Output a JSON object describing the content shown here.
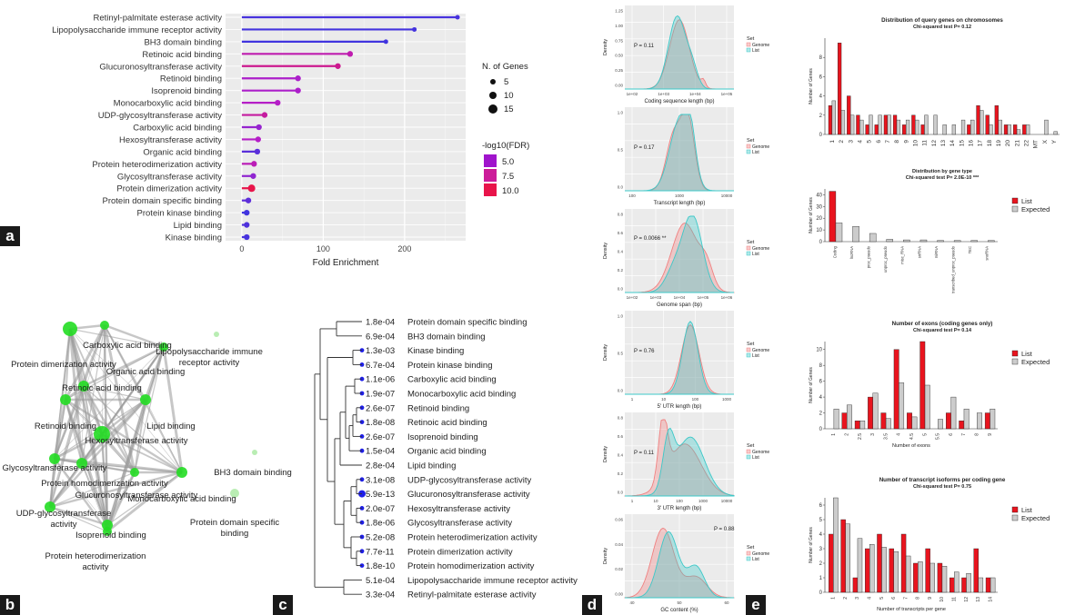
{
  "panel_labels": {
    "a": "a",
    "b": "b",
    "c": "c",
    "d": "d",
    "e": "e"
  },
  "chart_data": [
    {
      "id": "a",
      "type": "lollipop",
      "xlabel": "Fold Enrichment",
      "xticks": [
        0,
        100,
        200
      ],
      "xlim": [
        -20,
        275
      ],
      "categories": [
        "Retinyl-palmitate esterase activity",
        "Lipopolysaccharide immune receptor activity",
        "BH3 domain binding",
        "Retinoic acid binding",
        "Glucuronosyltransferase activity",
        "Retinoid binding",
        "Isoprenoid binding",
        "Monocarboxylic acid binding",
        "UDP-glycosyltransferase activity",
        "Carboxylic acid binding",
        "Hexosyltransferase activity",
        "Organic acid binding",
        "Protein heterodimerization activity",
        "Glycosyltransferase activity",
        "Protein dimerization activity",
        "Protein domain specific binding",
        "Protein kinase binding",
        "Lipid binding",
        "Kinase binding"
      ],
      "values": [
        265,
        212,
        177,
        133,
        118,
        69,
        69,
        44,
        28,
        21,
        20,
        19,
        15,
        14,
        12,
        8,
        6,
        6,
        6
      ],
      "n_genes": [
        5,
        5,
        5,
        8,
        8,
        8,
        8,
        8,
        8,
        8,
        8,
        8,
        8,
        8,
        12,
        8,
        8,
        8,
        8
      ],
      "log10fdr": [
        3.4,
        3.3,
        3.2,
        7.5,
        8.3,
        6.6,
        6.6,
        6.9,
        7.9,
        5.9,
        6.9,
        4.0,
        7.3,
        5.7,
        10.0,
        4.1,
        3.2,
        3.6,
        3.4
      ],
      "legend_size_title": "N. of Genes",
      "legend_size_labels": [
        "5",
        "10",
        "15"
      ],
      "legend_color_title": "-log10(FDR)",
      "legend_color_labels": [
        "5.0",
        "7.5",
        "10.0"
      ],
      "colors": {
        "low": "#3b35e0",
        "mid": "#b41ec9",
        "high": "#e8144a"
      }
    },
    {
      "id": "b",
      "type": "network",
      "nodes": [
        "Carboxylic acid binding",
        "Protein dimerization activity",
        "Organic acid binding",
        "Lipopolysaccharide immune receptor activity",
        "Retinoic acid binding",
        "Retinoid binding",
        "Lipid binding",
        "Hexosyltransferase activity",
        "Glycosyltransferase activity",
        "Protein homodimerization activity",
        "Glucuronosyltransferase activity",
        "Monocarboxylic acid binding",
        "BH3 domain binding",
        "UDP-glycosyltransferase activity",
        "Isoprenoid binding",
        "Protein domain specific binding",
        "Protein heterodimerization activity"
      ]
    },
    {
      "id": "c",
      "type": "dendrogram",
      "leaves": [
        {
          "fdr": "1.8e-04",
          "label": "Protein domain specific binding"
        },
        {
          "fdr": "6.9e-04",
          "label": "BH3 domain binding"
        },
        {
          "fdr": "1.3e-03",
          "label": "Kinase binding"
        },
        {
          "fdr": "6.7e-04",
          "label": "Protein kinase binding"
        },
        {
          "fdr": "1.1e-06",
          "label": "Carboxylic acid binding"
        },
        {
          "fdr": "1.9e-07",
          "label": "Monocarboxylic acid binding"
        },
        {
          "fdr": "2.6e-07",
          "label": "Retinoid binding"
        },
        {
          "fdr": "1.8e-08",
          "label": "Retinoic acid binding"
        },
        {
          "fdr": "2.6e-07",
          "label": "Isoprenoid binding"
        },
        {
          "fdr": "1.5e-04",
          "label": "Organic acid binding"
        },
        {
          "fdr": "2.8e-04",
          "label": "Lipid binding"
        },
        {
          "fdr": "3.1e-08",
          "label": "UDP-glycosyltransferase activity"
        },
        {
          "fdr": "5.9e-13",
          "label": "Glucuronosyltransferase activity"
        },
        {
          "fdr": "2.0e-07",
          "label": "Hexosyltransferase activity"
        },
        {
          "fdr": "1.8e-06",
          "label": "Glycosyltransferase activity"
        },
        {
          "fdr": "5.2e-08",
          "label": "Protein heterodimerization activity"
        },
        {
          "fdr": "7.7e-11",
          "label": "Protein dimerization activity"
        },
        {
          "fdr": "1.8e-10",
          "label": "Protein homodimerization activity"
        },
        {
          "fdr": "5.1e-04",
          "label": "Lipopolysaccharide immune receptor activity"
        },
        {
          "fdr": "3.3e-04",
          "label": "Retinyl-palmitate esterase activity"
        }
      ]
    },
    {
      "id": "d",
      "type": "density",
      "legend_title": "Set",
      "series_names": [
        "Genome",
        "List"
      ],
      "colors": {
        "Genome": "#f08080",
        "List": "#3cc8c8"
      },
      "panels": [
        {
          "xlabel": "Coding sequence length (bp)",
          "ylabel": "Density",
          "p": "P = 0.11",
          "xticks": [
            "1e+02",
            "1e+03",
            "1e+04",
            "1e+05"
          ],
          "yticks": [
            "0.00",
            "0.25",
            "0.50",
            "0.75",
            "1.00",
            "1.25"
          ]
        },
        {
          "xlabel": "Transcript length (bp)",
          "ylabel": "",
          "p": "P = 0.17",
          "xticks": [
            "100",
            "1000",
            "10000"
          ],
          "yticks": [
            "0.0",
            "0.5",
            "1.0"
          ]
        },
        {
          "xlabel": "Genome span (bp)",
          "ylabel": "Density",
          "p": "P = 0.0066  **",
          "xticks": [
            "1e+02",
            "1e+03",
            "1e+04",
            "1e+05",
            "1e+06"
          ],
          "yticks": [
            "0.0",
            "0.2",
            "0.4",
            "0.6",
            "0.8"
          ]
        },
        {
          "xlabel": "5' UTR length (bp)",
          "ylabel": "Density",
          "p": "P = 0.76",
          "xticks": [
            "1",
            "10",
            "100",
            "1000"
          ],
          "yticks": [
            "0.0",
            "0.5",
            "1.0"
          ]
        },
        {
          "xlabel": "3' UTR length (bp)",
          "ylabel": "Density",
          "p": "P = 0.11",
          "xticks": [
            "1",
            "10",
            "100",
            "1000",
            "10000"
          ],
          "yticks": [
            "0.0",
            "0.2",
            "0.4",
            "0.6",
            "0.8"
          ]
        },
        {
          "xlabel": "GC content (%)",
          "ylabel": "Density",
          "p": "P = 0.88",
          "xticks": [
            "40",
            "50",
            "60"
          ],
          "yticks": [
            "0.00",
            "0.02",
            "0.04",
            "0.06"
          ]
        }
      ]
    },
    {
      "id": "e",
      "type": "bar",
      "legend": [
        "List",
        "Expected"
      ],
      "colors": {
        "List": "#e8141e",
        "Expected": "#cccccc"
      },
      "panels": [
        {
          "title": "Distribution of query genes on chromosomes",
          "subtitle": "Chi-squared test P= 0.12",
          "ylabel": "Number of Genes",
          "ylim": [
            0,
            10
          ],
          "yticks": [
            0,
            2,
            4,
            6,
            8
          ],
          "categories": [
            "1",
            "2",
            "3",
            "4",
            "5",
            "6",
            "7",
            "8",
            "9",
            "10",
            "11",
            "12",
            "13",
            "14",
            "15",
            "16",
            "17",
            "18",
            "19",
            "20",
            "21",
            "22",
            "MT",
            "X",
            "Y"
          ],
          "series": [
            {
              "name": "List",
              "values": [
                3,
                9.5,
                4,
                2,
                1,
                1,
                2,
                2,
                1,
                2,
                1,
                0,
                0,
                0,
                0,
                1,
                3,
                2,
                3,
                1,
                1,
                1,
                0,
                0,
                0
              ]
            },
            {
              "name": "Expected",
              "values": [
                3.5,
                2.5,
                2,
                1.5,
                2,
                2,
                2,
                1.5,
                1.5,
                1.5,
                2,
                2,
                1,
                1,
                1.5,
                1.5,
                2.5,
                1,
                1.5,
                1,
                0.5,
                1,
                0,
                1.5,
                0.3
              ]
            }
          ]
        },
        {
          "title": "Distribution by gene type",
          "subtitle": "Chi-squared test P= 2.0E-10  ***",
          "ylabel": "Number of Genes",
          "ylim": [
            0,
            45
          ],
          "yticks": [
            0,
            10,
            20,
            30,
            40
          ],
          "categories": [
            "Coding",
            "lncRNA",
            "proc_pseudo",
            "unproc_pseudo",
            "misc_RNA",
            "snRNA",
            "miRNA",
            "transcribed_unproc_pseudo",
            "TEC",
            "snoRNA"
          ],
          "series": [
            {
              "name": "List",
              "values": [
                43,
                0,
                0,
                0,
                0,
                0,
                0,
                0,
                0,
                0
              ]
            },
            {
              "name": "Expected",
              "values": [
                16,
                13,
                7,
                2,
                1.5,
                1.5,
                1,
                1,
                1,
                1
              ]
            }
          ]
        },
        {
          "title": "Number of exons (coding genes only)",
          "subtitle": "Chi-squared test P= 0.14",
          "ylabel": "Number of Genes",
          "xlabel": "Number of exons",
          "ylim": [
            0,
            11
          ],
          "yticks": [
            0,
            2,
            4,
            6,
            8,
            10
          ],
          "categories": [
            "1",
            "2",
            "2.5",
            "3",
            "3.5",
            "4",
            "4.5",
            "5",
            "5.5",
            "6",
            "7",
            "8",
            "9"
          ],
          "series": [
            {
              "name": "List",
              "values": [
                0,
                2,
                1,
                4,
                2,
                10,
                2,
                11,
                0,
                2,
                1,
                0,
                2
              ]
            },
            {
              "name": "Expected",
              "values": [
                2.5,
                3,
                1,
                4.5,
                1.3,
                5.8,
                1.5,
                5.5,
                1.2,
                4,
                2.5,
                2,
                2.5
              ]
            }
          ]
        },
        {
          "title": "Number of transcript isoforms per coding gene",
          "subtitle": "Chi-squared test P= 0.75",
          "ylabel": "Number of Genes",
          "xlabel": "Number of transcripts per gene",
          "ylim": [
            0,
            6.5
          ],
          "yticks": [
            0,
            1,
            2,
            3,
            4,
            5,
            6
          ],
          "categories": [
            "1",
            "2",
            "3",
            "4",
            "5",
            "6",
            "7",
            "8",
            "9",
            "10",
            "11",
            "12",
            "13",
            "14"
          ],
          "series": [
            {
              "name": "List",
              "values": [
                4,
                5,
                1,
                3,
                4,
                3,
                4,
                2,
                3,
                2,
                1,
                1,
                3,
                1
              ]
            },
            {
              "name": "Expected",
              "values": [
                6.5,
                4.7,
                3.7,
                3.3,
                3.1,
                2.8,
                2.5,
                2.1,
                2,
                1.8,
                1.4,
                1.3,
                1,
                1
              ]
            }
          ]
        }
      ]
    }
  ]
}
